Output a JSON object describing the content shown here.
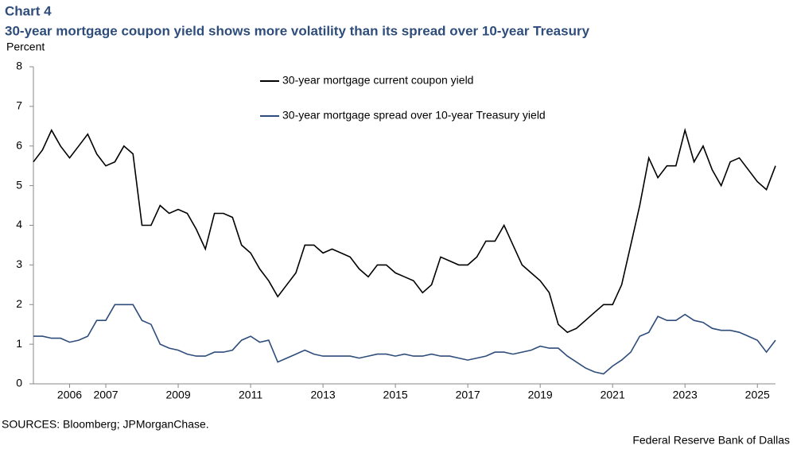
{
  "chart_data": {
    "type": "line",
    "label": "Chart 4",
    "title": "30-year mortgage coupon yield shows more volatility than its spread over 10-year Treasury",
    "ylabel": "Percent",
    "source": "SOURCES: Bloomberg; JPMorganChase.",
    "credit": "Federal Reserve Bank of Dallas",
    "legend": "top-center",
    "xlim": [
      2005,
      2025.5
    ],
    "xticks": [
      2006,
      2007,
      2009,
      2011,
      2013,
      2015,
      2017,
      2019,
      2021,
      2023,
      2025
    ],
    "ylim": [
      0,
      8
    ],
    "yticks": [
      0,
      1,
      2,
      3,
      4,
      5,
      6,
      7,
      8
    ],
    "x": [
      2005,
      2005.25,
      2005.5,
      2005.75,
      2006,
      2006.25,
      2006.5,
      2006.75,
      2007,
      2007.25,
      2007.5,
      2007.75,
      2008,
      2008.25,
      2008.5,
      2008.75,
      2009,
      2009.25,
      2009.5,
      2009.75,
      2010,
      2010.25,
      2010.5,
      2010.75,
      2011,
      2011.25,
      2011.5,
      2011.75,
      2012,
      2012.25,
      2012.5,
      2012.75,
      2013,
      2013.25,
      2013.5,
      2013.75,
      2014,
      2014.25,
      2014.5,
      2014.75,
      2015,
      2015.25,
      2015.5,
      2015.75,
      2016,
      2016.25,
      2016.5,
      2016.75,
      2017,
      2017.25,
      2017.5,
      2017.75,
      2018,
      2018.25,
      2018.5,
      2018.75,
      2019,
      2019.25,
      2019.5,
      2019.75,
      2020,
      2020.25,
      2020.5,
      2020.75,
      2021,
      2021.25,
      2021.5,
      2021.75,
      2022,
      2022.25,
      2022.5,
      2022.75,
      2023,
      2023.25,
      2023.5,
      2023.75,
      2024,
      2024.25,
      2024.5,
      2024.75,
      2025,
      2025.25,
      2025.5
    ],
    "series": [
      {
        "name": "30-year mortgage current coupon yield",
        "color": "#000000",
        "values": [
          5.6,
          5.9,
          6.4,
          6.0,
          5.7,
          6.0,
          6.3,
          5.8,
          5.5,
          5.6,
          6.0,
          5.8,
          4.0,
          4.0,
          4.5,
          4.3,
          4.4,
          4.3,
          3.9,
          3.4,
          4.3,
          4.3,
          4.2,
          3.5,
          3.3,
          2.9,
          2.6,
          2.2,
          2.5,
          2.8,
          3.5,
          3.5,
          3.3,
          3.4,
          3.3,
          3.2,
          2.9,
          2.7,
          3.0,
          3.0,
          2.8,
          2.7,
          2.6,
          2.3,
          2.5,
          3.2,
          3.1,
          3.0,
          3.0,
          3.2,
          3.6,
          3.6,
          4.0,
          3.5,
          3.0,
          2.8,
          2.6,
          2.3,
          1.5,
          1.3,
          1.4,
          1.6,
          1.8,
          2.0,
          2.0,
          2.5,
          3.5,
          4.5,
          5.7,
          5.2,
          5.5,
          5.5,
          6.4,
          5.6,
          6.0,
          5.4,
          5.0,
          5.6,
          5.7,
          5.4,
          5.1,
          4.9,
          5.5
        ]
      },
      {
        "name": "30-year mortgage spread over 10-year Treasury yield",
        "color": "#2e4d7b",
        "values": [
          1.2,
          1.2,
          1.15,
          1.15,
          1.05,
          1.1,
          1.2,
          1.6,
          1.6,
          2.0,
          2.0,
          2.0,
          1.6,
          1.5,
          1.0,
          0.9,
          0.85,
          0.75,
          0.7,
          0.7,
          0.8,
          0.8,
          0.85,
          1.1,
          1.2,
          1.05,
          1.1,
          0.55,
          0.65,
          0.75,
          0.85,
          0.75,
          0.7,
          0.7,
          0.7,
          0.7,
          0.65,
          0.7,
          0.75,
          0.75,
          0.7,
          0.75,
          0.7,
          0.7,
          0.75,
          0.7,
          0.7,
          0.65,
          0.6,
          0.65,
          0.7,
          0.8,
          0.8,
          0.75,
          0.8,
          0.85,
          0.95,
          0.9,
          0.9,
          0.7,
          0.55,
          0.4,
          0.3,
          0.25,
          0.45,
          0.6,
          0.8,
          1.2,
          1.3,
          1.7,
          1.6,
          1.6,
          1.75,
          1.6,
          1.55,
          1.4,
          1.35,
          1.35,
          1.3,
          1.2,
          1.1,
          0.8,
          1.1
        ]
      }
    ]
  }
}
